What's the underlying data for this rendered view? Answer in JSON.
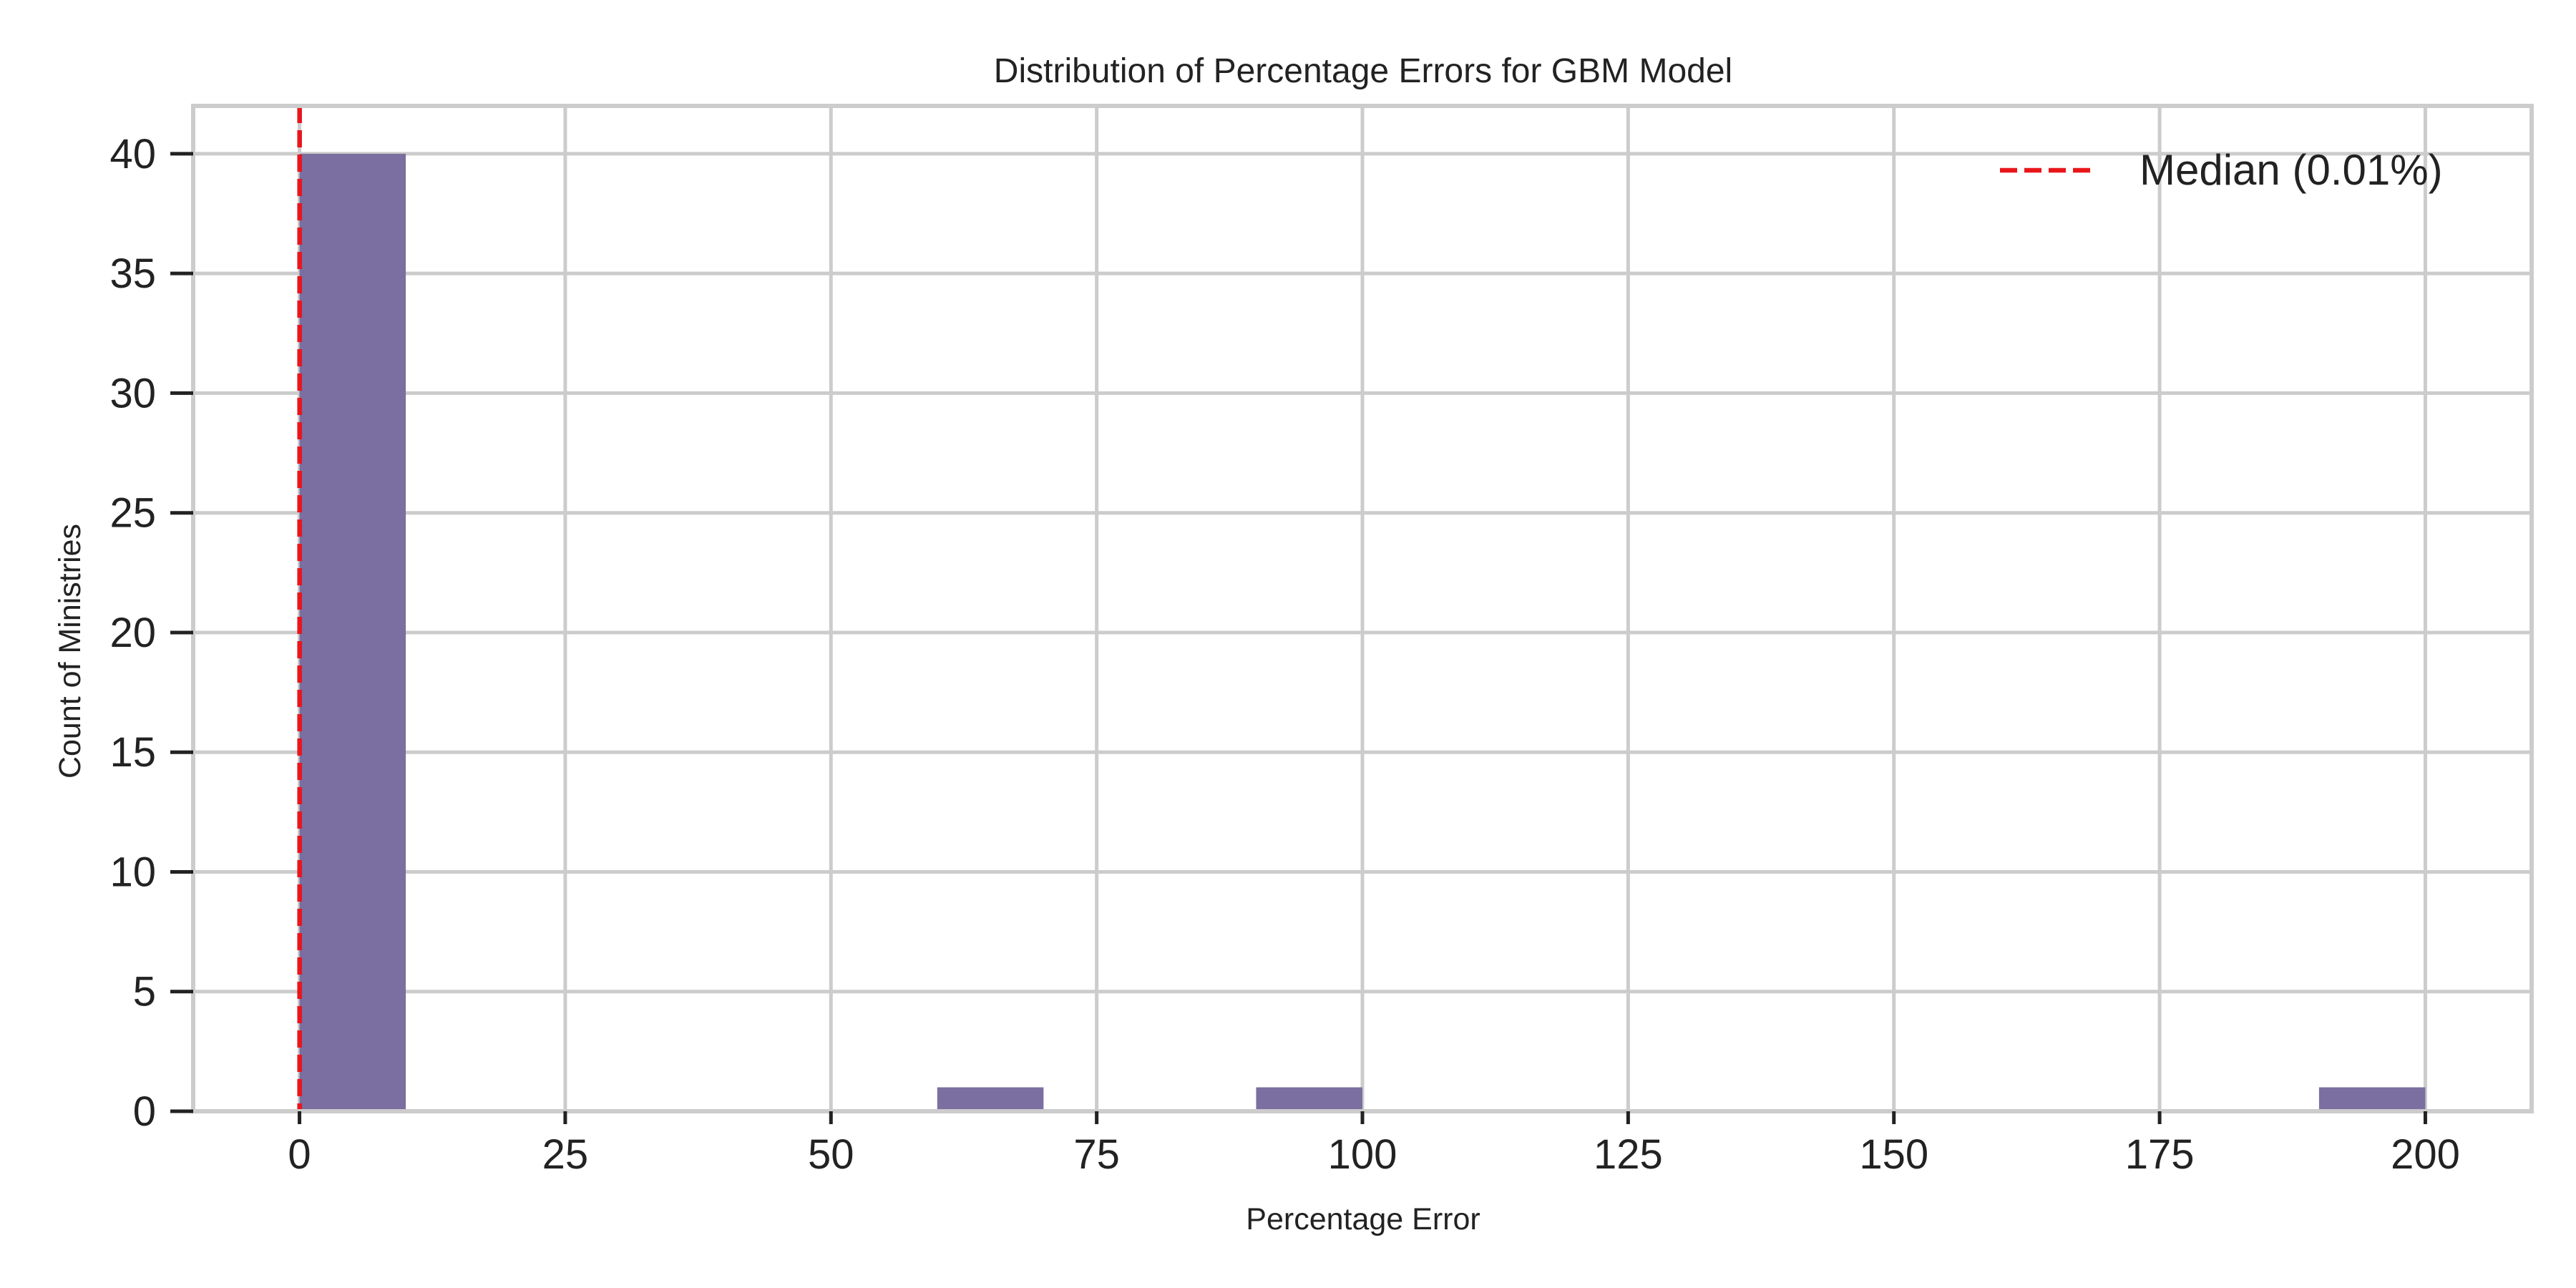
{
  "chart_data": {
    "type": "bar",
    "title": "Distribution of Percentage Errors for GBM Model",
    "xlabel": "Percentage Error",
    "ylabel": "Count of Ministries",
    "xlim": [
      -10,
      210
    ],
    "ylim": [
      0,
      42
    ],
    "xticks": [
      0,
      25,
      50,
      75,
      100,
      125,
      150,
      175,
      200
    ],
    "yticks": [
      0,
      5,
      10,
      15,
      20,
      25,
      30,
      35,
      40
    ],
    "grid": true,
    "legend_position": "top-right",
    "bins": [
      {
        "start": 0,
        "end": 10,
        "count": 40
      },
      {
        "start": 60,
        "end": 70,
        "count": 1
      },
      {
        "start": 90,
        "end": 100,
        "count": 1
      },
      {
        "start": 190,
        "end": 200,
        "count": 1
      }
    ],
    "reference_lines": [
      {
        "type": "vertical",
        "x": 0.01,
        "label": "Median (0.01%)",
        "style": "dashed"
      }
    ],
    "colors": {
      "bar": "#7b6ea0",
      "median_line": "#e8161b",
      "grid": "#cccccc",
      "spine": "#cccccc",
      "text": "#222222"
    }
  }
}
